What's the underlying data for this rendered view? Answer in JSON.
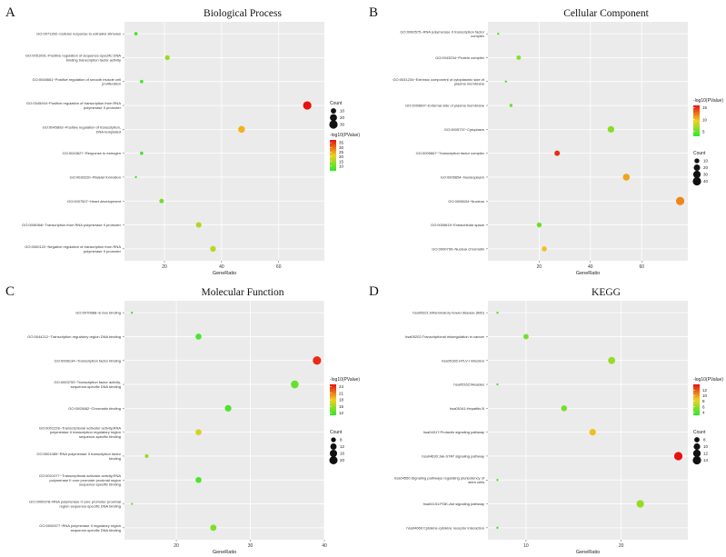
{
  "color_scale": {
    "low": "#2ee82e",
    "mid": "#f0d020",
    "high": "#e81010"
  },
  "chart_data": [
    {
      "panel_label": "A",
      "title": "Biological Process",
      "type": "scatter",
      "xlabel": "GeneRatio",
      "xlim": [
        6,
        76
      ],
      "xticks": [
        20,
        40,
        60
      ],
      "categories": [
        "GO:0071392~Cellular response to estradiol stimulus",
        "GO:0051091~Positive regulation of sequence-specific DNA binding transcription factor activity",
        "GO:0048661~Positive regulation of smooth muscle cell proliferation",
        "GO:0045944~Positive regulation of transcription from RNA polymerase II promoter",
        "GO:0045893~Positive regulation of transcription, DNA-templated",
        "GO:0043627~Response to estrogen",
        "GO:0030220~Platelet formation",
        "GO:0007507~Heart development",
        "GO:0006366~Transcription from RNA polymerase II promoter",
        "GO:0000122~Negative regulation of transcription from RNA polymerase II promoter"
      ],
      "x": [
        10,
        21,
        12,
        70,
        47,
        12,
        10,
        19,
        32,
        37
      ],
      "count": [
        4,
        8,
        4,
        30,
        18,
        4,
        3,
        7,
        11,
        12
      ],
      "color_value": [
        7,
        14,
        7,
        38,
        24,
        7,
        6,
        11,
        16,
        17
      ],
      "count_legend": {
        "title": "Count",
        "values": [
          10,
          20,
          30
        ],
        "range": [
          3,
          30
        ]
      },
      "color_legend": {
        "title": "-log10(PValue)",
        "ticks": [
          10,
          15,
          20,
          25,
          30,
          35
        ],
        "range": [
          5,
          38
        ]
      }
    },
    {
      "panel_label": "B",
      "title": "Cellular Component",
      "type": "scatter",
      "xlabel": "GeneRatio",
      "xlim": [
        0,
        78
      ],
      "xticks": [
        20,
        40,
        60
      ],
      "categories": [
        "GO:0090575~RNA polymerase II transcription factor complex",
        "GO:0043234~Protein complex",
        "GO:0031234~Extrinsic component of cytoplasmic side of plasma membrane",
        "GO:0009897~External side of plasma membrane",
        "GO:0005737~Cytoplasm",
        "GO:0005667~Transcription factor complex",
        "GO:0005654~Nucleoplasm",
        "GO:0005634~Nucleus",
        "GO:0005615~Extracellular space",
        "GO:0000790~Nuclear chromatin"
      ],
      "x": [
        4,
        12,
        7,
        9,
        48,
        27,
        54,
        75,
        20,
        22
      ],
      "count": [
        3,
        8,
        3,
        4,
        22,
        13,
        24,
        40,
        10,
        11
      ],
      "color_value": [
        4,
        6,
        4,
        5,
        6,
        15,
        11,
        12,
        5,
        10
      ],
      "count_legend": {
        "title": "Count",
        "values": [
          10,
          20,
          30,
          40
        ],
        "range": [
          3,
          40
        ]
      },
      "color_legend": {
        "title": "-log10(PValue)",
        "ticks": [
          5,
          10,
          15
        ],
        "range": [
          3,
          16
        ]
      }
    },
    {
      "panel_label": "C",
      "title": "Molecular Function",
      "type": "scatter",
      "xlabel": "GeneRatio",
      "xlim": [
        13,
        40
      ],
      "xticks": [
        20,
        30,
        40
      ],
      "categories": [
        "GO:0070888~E-box binding",
        "GO:0044212~Transcription regulatory region DNA binding",
        "GO:0008134~Transcription factor binding",
        "GO:0003700~Transcription factor activity, sequence-specific DNA binding",
        "GO:0003682~Chromatin binding",
        "GO:0001228~Transcriptional activator activity,RNA polymerase II transcription regulatory region sequence-specific binding",
        "GO:0001085~RNA polymerase II transcription factor binding",
        "GO:0001077~Transcriptional activator activity,RNA polymerase II core promoter proximal region sequence-specific binding",
        "GO:0000978~RNA polymerase II core promoter proximal region sequence-specific DNA binding",
        "GO:0000977~RNA polymerase II regulatory region sequence-specific DNA binding"
      ],
      "x": [
        14,
        23,
        39,
        36,
        27,
        23,
        16,
        23,
        14,
        25
      ],
      "count": [
        5,
        11,
        21,
        18,
        13,
        11,
        6,
        11,
        5,
        12
      ],
      "color_value": [
        12,
        12,
        24,
        13,
        12,
        17,
        15,
        12,
        14,
        14
      ],
      "count_legend": {
        "title": "Count",
        "values": [
          8,
          12,
          16,
          20
        ],
        "range": [
          5,
          21
        ]
      },
      "color_legend": {
        "title": "-log10(PValue)",
        "ticks": [
          12,
          15,
          18,
          21,
          24
        ],
        "range": [
          11,
          25
        ]
      }
    },
    {
      "panel_label": "D",
      "title": "KEGG",
      "type": "scatter",
      "xlabel": "GeneRatio",
      "xlim": [
        6,
        27
      ],
      "xticks": [
        10,
        20,
        30
      ],
      "categories": [
        "hsa05321:Inflammatory bowel disease (IBD)",
        "hsa05202:Transcriptional misregulation in cancer",
        "hsa05166:HTLV-I infection",
        "hsa05162:Measles",
        "hsa05161:Hepatitis B",
        "hsa04917:Prolactin signaling pathway",
        "hsa04630:Jak-STAT signaling pathway",
        "hsa04550:Signaling pathways regulating pluripotency of stem cells",
        "hsa04151:PI3K-Akt signaling pathway",
        "hsa04060:Cytokine-cytokine receptor interaction"
      ],
      "x": [
        7,
        10,
        19,
        7,
        14,
        17,
        26,
        7,
        22,
        7
      ],
      "count": [
        6,
        8,
        11,
        6,
        9,
        10,
        14,
        6,
        12,
        6
      ],
      "color_value": [
        4,
        5,
        6,
        4,
        5,
        9,
        14,
        4,
        6,
        3
      ],
      "count_legend": {
        "title": "Count",
        "values": [
          8,
          10,
          12,
          14
        ],
        "range": [
          6,
          14
        ]
      },
      "color_legend": {
        "title": "-log10(PValue)",
        "ticks": [
          4,
          6,
          8,
          10,
          12
        ],
        "range": [
          3,
          14
        ]
      }
    }
  ]
}
